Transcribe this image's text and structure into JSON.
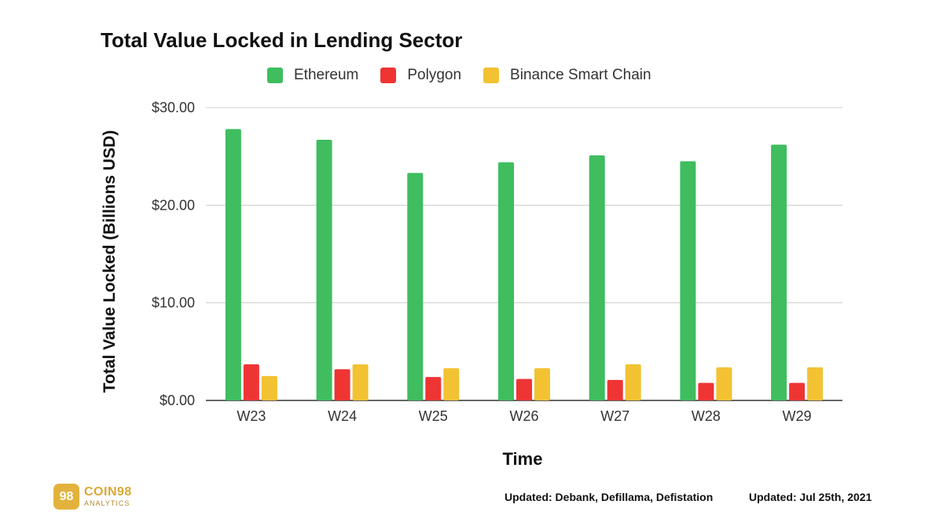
{
  "chart_data": {
    "type": "bar",
    "title": "Total Value Locked in Lending Sector",
    "xlabel": "Time",
    "ylabel": "Total Value Locked (Billions USD)",
    "categories": [
      "W23",
      "W24",
      "W25",
      "W26",
      "W27",
      "W28",
      "W29"
    ],
    "series": [
      {
        "name": "Ethereum",
        "color": "#3fbd5f",
        "values": [
          27.8,
          26.7,
          23.3,
          24.4,
          25.1,
          24.5,
          26.2
        ]
      },
      {
        "name": "Polygon",
        "color": "#ef3434",
        "values": [
          3.7,
          3.2,
          2.4,
          2.2,
          2.1,
          1.8,
          1.8
        ]
      },
      {
        "name": "Binance Smart Chain",
        "color": "#f2c232",
        "values": [
          2.5,
          3.7,
          3.3,
          3.3,
          3.7,
          3.4,
          3.4
        ]
      }
    ],
    "ylim": [
      0,
      30
    ],
    "yticks": [
      "$0.00",
      "$10.00",
      "$20.00",
      "$30.00"
    ],
    "ytick_values": [
      0,
      10,
      20,
      30
    ],
    "grid": true,
    "legend": "top-center"
  },
  "branding": {
    "logo_mark": "98",
    "logo_name": "COIN98",
    "logo_sub": "ANALYTICS"
  },
  "footer": {
    "sources": "Updated: Debank, Defillama, Defistation",
    "date": "Updated: Jul 25th, 2021"
  }
}
